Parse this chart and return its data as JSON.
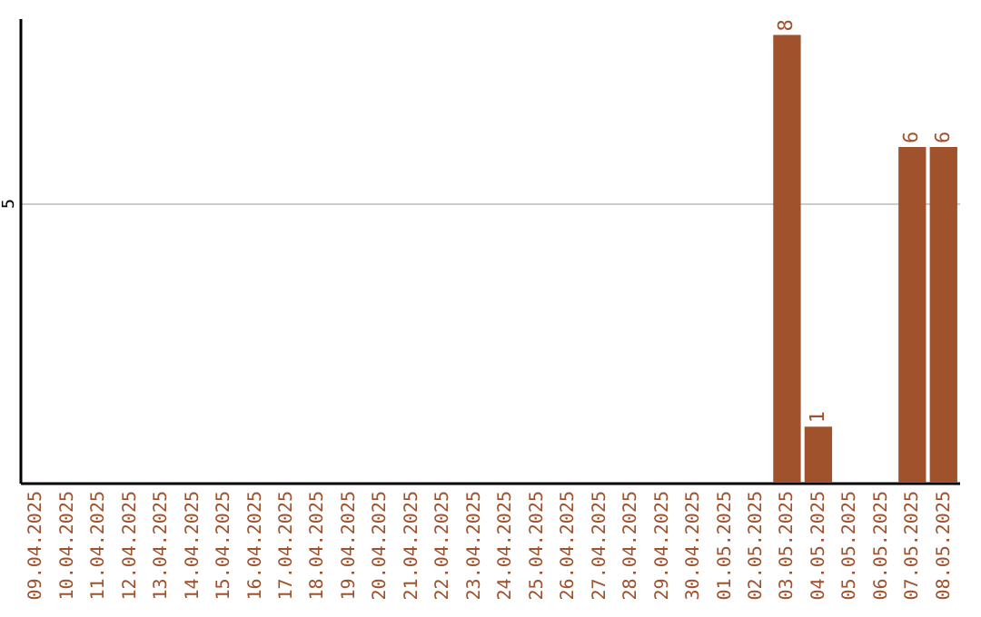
{
  "chart_data": {
    "type": "bar",
    "categories": [
      "09.04.2025",
      "10.04.2025",
      "11.04.2025",
      "12.04.2025",
      "13.04.2025",
      "14.04.2025",
      "15.04.2025",
      "16.04.2025",
      "17.04.2025",
      "18.04.2025",
      "19.04.2025",
      "20.04.2025",
      "21.04.2025",
      "22.04.2025",
      "23.04.2025",
      "24.04.2025",
      "25.04.2025",
      "26.04.2025",
      "27.04.2025",
      "28.04.2025",
      "29.04.2025",
      "30.04.2025",
      "01.05.2025",
      "02.05.2025",
      "03.05.2025",
      "04.05.2025",
      "05.05.2025",
      "06.05.2025",
      "07.05.2025",
      "08.05.2025"
    ],
    "values": [
      null,
      null,
      null,
      null,
      null,
      null,
      null,
      null,
      null,
      null,
      null,
      null,
      null,
      null,
      null,
      null,
      null,
      null,
      null,
      null,
      null,
      null,
      null,
      null,
      8,
      1,
      null,
      null,
      6,
      6
    ],
    "color": "#a0522d",
    "ylim": [
      0,
      8.3
    ],
    "yticks": [
      5
    ],
    "grid": "y",
    "data_labels": true
  }
}
